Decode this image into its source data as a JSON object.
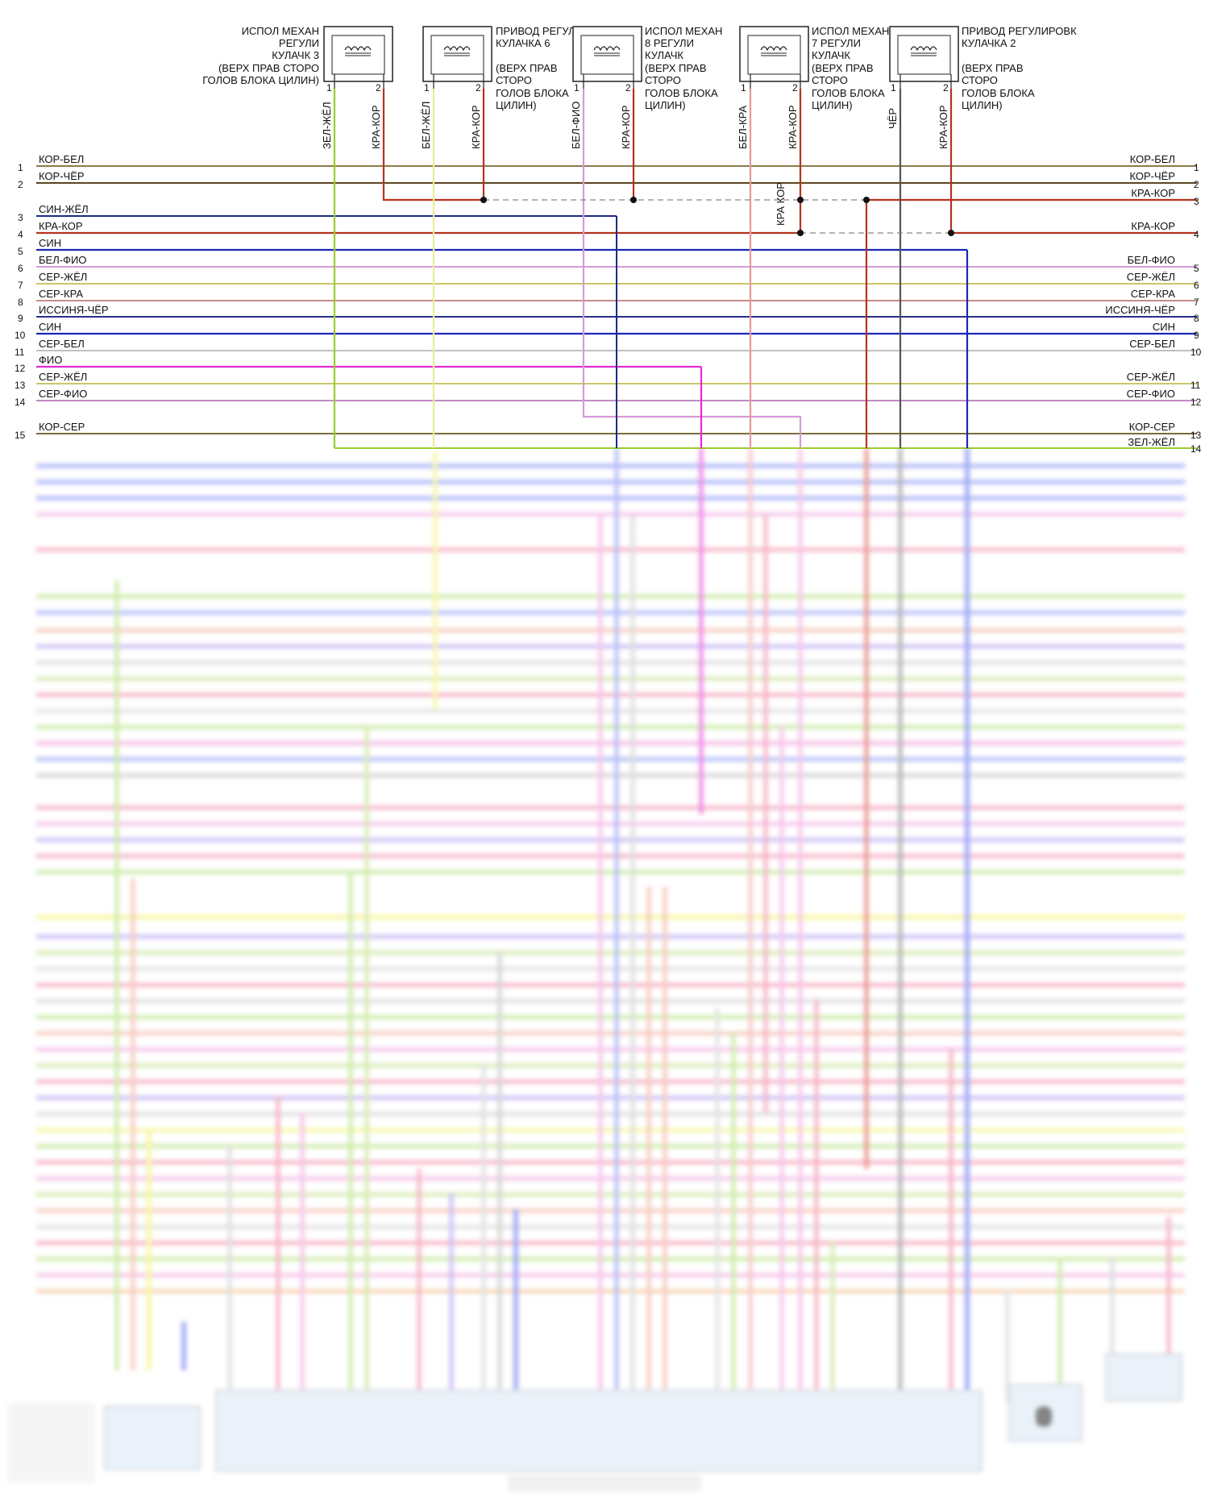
{
  "components": [
    {
      "id": "c3",
      "lines": [
        "ИСПОЛ МЕХАН",
        "РЕГУЛИ",
        "КУЛАЧК 3",
        "(ВЕРХ ПРАВ СТОРО",
        "ГОЛОВ БЛОКА ЦИЛИН)"
      ],
      "pin1_label": "1",
      "pin2_label": "2",
      "wire1": "ЗЕЛ-ЖЁЛ",
      "wire2": "КРА-КОР"
    },
    {
      "id": "c6",
      "lines": [
        "ПРИВОД РЕГУЛИРОВК",
        "КУЛАЧКА 6",
        "",
        "(ВЕРХ ПРАВ",
        "СТОРО",
        "ГОЛОВ БЛОКА",
        "ЦИЛИН)"
      ],
      "pin1_label": "1",
      "pin2_label": "2",
      "wire1": "БЕЛ-ЖЁЛ",
      "wire2": "КРА-КОР"
    },
    {
      "id": "c8",
      "lines": [
        "ИСПОЛ МЕХАН",
        "8 РЕГУЛИ",
        "КУЛАЧК",
        "(ВЕРХ ПРАВ",
        "СТОРО",
        "ГОЛОВ БЛОКА",
        "ЦИЛИН)"
      ],
      "pin1_label": "1",
      "pin2_label": "2",
      "wire1": "БЕЛ-ФИО",
      "wire2": "КРА-КОР"
    },
    {
      "id": "c7",
      "lines": [
        "ИСПОЛ МЕХАН",
        "7 РЕГУЛИ",
        "КУЛАЧК",
        "(ВЕРХ ПРАВ",
        "СТОРО",
        "ГОЛОВ БЛОКА",
        "ЦИЛИН)"
      ],
      "pin1_label": "1",
      "pin2_label": "2",
      "wire1": "БЕЛ-КРА",
      "wire2": "КРА-КОР"
    },
    {
      "id": "c2",
      "lines": [
        "ПРИВОД РЕГУЛИРОВК",
        "КУЛАЧКА 2",
        "",
        "(ВЕРХ ПРАВ",
        "СТОРО",
        "ГОЛОВ БЛОКА",
        "ЦИЛИН)"
      ],
      "pin1_label": "1",
      "pin2_label": "2",
      "wire1": "ЧЁР",
      "wire2": "КРА-КОР"
    }
  ],
  "left_wires": [
    {
      "num": "1",
      "label": "КОР-БЕЛ"
    },
    {
      "num": "2",
      "label": "КОР-ЧЁР"
    },
    {
      "num": "3",
      "label": "СИН-ЖЁЛ"
    },
    {
      "num": "4",
      "label": "КРА-КОР"
    },
    {
      "num": "5",
      "label": "СИН"
    },
    {
      "num": "6",
      "label": "БЕЛ-ФИО"
    },
    {
      "num": "7",
      "label": "СЕР-ЖЁЛ"
    },
    {
      "num": "8",
      "label": "СЕР-КРА"
    },
    {
      "num": "9",
      "label": "ИССИНЯ-ЧЁР"
    },
    {
      "num": "10",
      "label": "СИН"
    },
    {
      "num": "11",
      "label": "СЕР-БЕЛ"
    },
    {
      "num": "12",
      "label": "ФИО"
    },
    {
      "num": "13",
      "label": "СЕР-ЖЁЛ"
    },
    {
      "num": "14",
      "label": "СЕР-ФИО"
    },
    {
      "num": "15",
      "label": "КОР-СЕР"
    }
  ],
  "right_wires": [
    {
      "num": "1",
      "label": "КОР-БЕЛ"
    },
    {
      "num": "2",
      "label": "КОР-ЧЁР"
    },
    {
      "num": "3",
      "label": "КРА-КОР"
    },
    {
      "num": "4",
      "label": "КРА-КОР"
    },
    {
      "num": "5",
      "label": "БЕЛ-ФИО"
    },
    {
      "num": "6",
      "label": "СЕР-ЖЁЛ"
    },
    {
      "num": "7",
      "label": "СЕР-КРА"
    },
    {
      "num": "8",
      "label": "ИССИНЯ-ЧЁР"
    },
    {
      "num": "9",
      "label": "СИН"
    },
    {
      "num": "10",
      "label": "СЕР-БЕЛ"
    },
    {
      "num": "11",
      "label": "СЕР-ЖЁЛ"
    },
    {
      "num": "12",
      "label": "СЕР-ФИО"
    },
    {
      "num": "13",
      "label": "КОР-СЕР"
    },
    {
      "num": "14",
      "label": "ЗЕЛ-ЖЁЛ"
    }
  ],
  "splice_label": "КРА КОР",
  "colors": {
    "kor_bel": "#8f7a4a",
    "kor_cher": "#5a4520",
    "kra_kor": "#b5331f",
    "sin_zhel": "#1d2a86",
    "sin": "#1b27b6",
    "bel_fio": "#d59ad8",
    "ser_zhel": "#c9c86a",
    "ser_kra": "#c78a8e",
    "issinya_cher": "#2a2f8a",
    "ser_bel": "#c0c0c0",
    "fio": "#e02ad5",
    "ser_fio": "#c08ac6",
    "kor_ser": "#7a6a3a",
    "zel_zhel": "#9ccc2e",
    "bel_zhel": "#ecec9a",
    "bel_kra": "#e49a9a",
    "cher": "#555555"
  }
}
